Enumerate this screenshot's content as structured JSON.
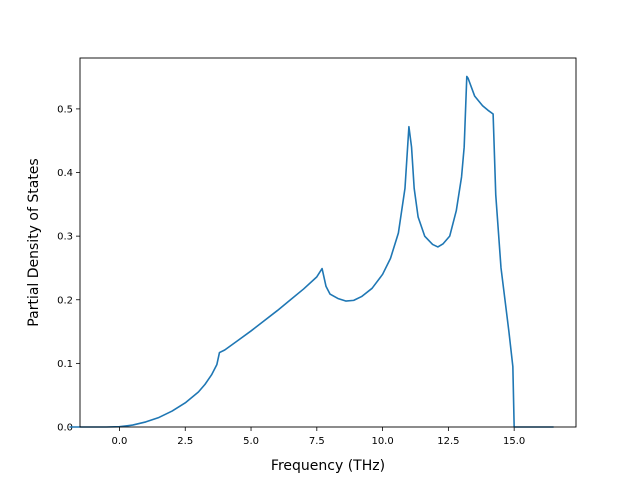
{
  "chart_data": {
    "type": "line",
    "title": "",
    "xlabel": "Frequency (THz)",
    "ylabel": "Partial Density of States",
    "xlim": [
      -1.5,
      17.35
    ],
    "ylim": [
      0,
      0.58
    ],
    "xticks": [
      0.0,
      2.5,
      5.0,
      7.5,
      10.0,
      12.5,
      15.0
    ],
    "xtick_labels": [
      "0.0",
      "2.5",
      "5.0",
      "7.5",
      "10.0",
      "12.5",
      "15.0"
    ],
    "yticks": [
      0.0,
      0.1,
      0.2,
      0.3,
      0.4,
      0.5
    ],
    "ytick_labels": [
      "0.0",
      "0.1",
      "0.2",
      "0.3",
      "0.4",
      "0.5"
    ],
    "grid": false,
    "legend": "none",
    "series": [
      {
        "color": "#1f77b4",
        "x": [
          -1.9,
          -0.5,
          0.0,
          0.5,
          1.0,
          1.5,
          2.0,
          2.5,
          3.0,
          3.25,
          3.5,
          3.7,
          3.8,
          4.0,
          4.5,
          5.0,
          5.5,
          6.0,
          6.5,
          7.0,
          7.5,
          7.7,
          7.85,
          8.0,
          8.3,
          8.6,
          8.9,
          9.2,
          9.6,
          10.0,
          10.3,
          10.6,
          10.85,
          11.0,
          11.1,
          11.2,
          11.35,
          11.6,
          11.9,
          12.1,
          12.3,
          12.55,
          12.8,
          13.0,
          13.1,
          13.2,
          13.25,
          13.5,
          13.8,
          14.0,
          14.2,
          14.3,
          14.5,
          14.8,
          14.95,
          15.0,
          15.3,
          16.5
        ],
        "y": [
          0.0,
          0.0,
          0.0005,
          0.003,
          0.008,
          0.015,
          0.025,
          0.038,
          0.055,
          0.067,
          0.082,
          0.098,
          0.117,
          0.121,
          0.136,
          0.151,
          0.167,
          0.183,
          0.2,
          0.217,
          0.236,
          0.249,
          0.221,
          0.209,
          0.202,
          0.198,
          0.199,
          0.205,
          0.218,
          0.24,
          0.265,
          0.305,
          0.375,
          0.472,
          0.44,
          0.375,
          0.33,
          0.3,
          0.287,
          0.283,
          0.288,
          0.3,
          0.34,
          0.393,
          0.44,
          0.551,
          0.548,
          0.52,
          0.505,
          0.498,
          0.492,
          0.365,
          0.25,
          0.15,
          0.095,
          0.0,
          0.0,
          0.0
        ]
      }
    ]
  }
}
